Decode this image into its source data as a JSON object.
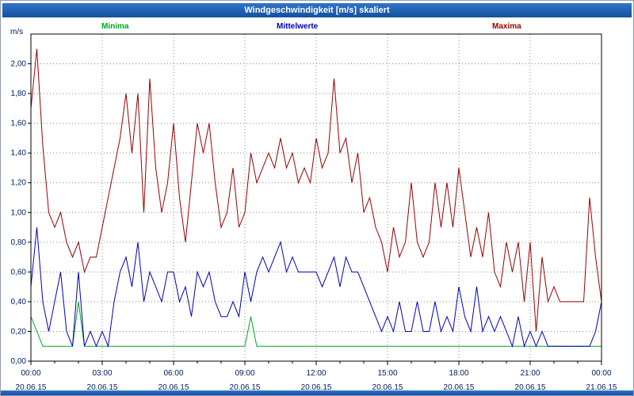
{
  "window": {
    "title": "Windgeschwindigkeit [m/s] skaliert"
  },
  "chart_data": {
    "type": "line",
    "title": "Windgeschwindigkeit [m/s] skaliert",
    "y_axis_label": "m/s",
    "ylim": [
      0,
      2.2
    ],
    "xlim_hours": [
      0,
      24
    ],
    "grid": true,
    "legend_position": "top",
    "sample_interval_minutes": 15,
    "y_ticks": {
      "values": [
        0,
        0.2,
        0.4,
        0.6,
        0.8,
        1.0,
        1.2,
        1.4,
        1.6,
        1.8,
        2.0
      ],
      "labels": [
        "0,00",
        "0,20",
        "0,40",
        "0,60",
        "0,80",
        "1,00",
        "1,20",
        "1,40",
        "1,60",
        "1,80",
        "2,00"
      ]
    },
    "x_ticks": {
      "hours": [
        0,
        3,
        6,
        9,
        12,
        15,
        18,
        21,
        24
      ],
      "time_labels": [
        "00:00",
        "03:00",
        "06:00",
        "09:00",
        "12:00",
        "15:00",
        "18:00",
        "21:00",
        "00:00"
      ],
      "date_labels": [
        "20.06.15",
        "20.06.15",
        "20.06.15",
        "20.06.15",
        "20.06.15",
        "20.06.15",
        "20.06.15",
        "20.06.15",
        "21.06.15"
      ]
    },
    "series": [
      {
        "name": "Minima",
        "color": "#00a522",
        "values": [
          0.3,
          0.2,
          0.1,
          0.1,
          0.1,
          0.1,
          0.1,
          0.1,
          0.4,
          0.1,
          0.1,
          0.1,
          0.1,
          0.1,
          0.1,
          0.1,
          0.1,
          0.1,
          0.1,
          0.1,
          0.1,
          0.1,
          0.1,
          0.1,
          0.1,
          0.1,
          0.1,
          0.1,
          0.1,
          0.1,
          0.1,
          0.1,
          0.1,
          0.1,
          0.1,
          0.1,
          0.1,
          0.3,
          0.1,
          0.1,
          0.1,
          0.1,
          0.1,
          0.1,
          0.1,
          0.1,
          0.1,
          0.1,
          0.1,
          0.1,
          0.1,
          0.1,
          0.1,
          0.1,
          0.1,
          0.1,
          0.1,
          0.1,
          0.1,
          0.1,
          0.1,
          0.1,
          0.1,
          0.1,
          0.1,
          0.1,
          0.1,
          0.1,
          0.1,
          0.1,
          0.1,
          0.1,
          0.1,
          0.1,
          0.1,
          0.1,
          0.1,
          0.1,
          0.1,
          0.1,
          0.1,
          0.1,
          0.1,
          0.1,
          0.1,
          0.1,
          0.1,
          0.1,
          0.1,
          0.1,
          0.1,
          0.1,
          0.1,
          0.1,
          0.1,
          0.1,
          0.1
        ]
      },
      {
        "name": "Mittelwerte",
        "color": "#0000bb",
        "values": [
          0.5,
          0.9,
          0.4,
          0.2,
          0.4,
          0.6,
          0.2,
          0.1,
          0.6,
          0.1,
          0.2,
          0.1,
          0.2,
          0.1,
          0.4,
          0.6,
          0.7,
          0.5,
          0.8,
          0.4,
          0.6,
          0.5,
          0.4,
          0.6,
          0.6,
          0.4,
          0.5,
          0.3,
          0.6,
          0.5,
          0.6,
          0.4,
          0.3,
          0.3,
          0.4,
          0.3,
          0.6,
          0.4,
          0.6,
          0.7,
          0.6,
          0.7,
          0.8,
          0.6,
          0.7,
          0.6,
          0.6,
          0.6,
          0.6,
          0.5,
          0.6,
          0.7,
          0.5,
          0.7,
          0.6,
          0.6,
          0.5,
          0.4,
          0.3,
          0.2,
          0.3,
          0.2,
          0.4,
          0.2,
          0.2,
          0.4,
          0.2,
          0.2,
          0.4,
          0.2,
          0.3,
          0.2,
          0.5,
          0.3,
          0.2,
          0.5,
          0.2,
          0.3,
          0.2,
          0.3,
          0.2,
          0.1,
          0.3,
          0.1,
          0.2,
          0.1,
          0.2,
          0.1,
          0.1,
          0.1,
          0.1,
          0.1,
          0.1,
          0.1,
          0.1,
          0.2,
          0.4
        ]
      },
      {
        "name": "Maxima",
        "color": "#990000",
        "values": [
          1.7,
          2.1,
          1.45,
          1.0,
          0.9,
          1.0,
          0.8,
          0.7,
          0.8,
          0.6,
          0.7,
          0.7,
          0.9,
          1.1,
          1.3,
          1.5,
          1.8,
          1.4,
          1.8,
          1.0,
          1.9,
          1.3,
          1.0,
          1.2,
          1.6,
          1.1,
          0.8,
          1.2,
          1.6,
          1.4,
          1.6,
          1.2,
          0.9,
          1.0,
          1.3,
          0.9,
          1.0,
          1.4,
          1.2,
          1.3,
          1.4,
          1.3,
          1.5,
          1.3,
          1.4,
          1.2,
          1.3,
          1.2,
          1.5,
          1.3,
          1.4,
          1.9,
          1.4,
          1.5,
          1.2,
          1.4,
          1.0,
          1.1,
          0.9,
          0.8,
          0.6,
          0.9,
          0.7,
          0.8,
          1.2,
          0.8,
          0.7,
          0.8,
          1.2,
          0.9,
          1.2,
          0.9,
          1.3,
          1.0,
          0.7,
          0.9,
          0.7,
          1.0,
          0.6,
          0.5,
          0.8,
          0.6,
          0.8,
          0.4,
          0.8,
          0.2,
          0.7,
          0.4,
          0.5,
          0.4,
          0.4,
          0.4,
          0.4,
          0.4,
          1.1,
          0.7,
          0.4
        ]
      }
    ]
  }
}
